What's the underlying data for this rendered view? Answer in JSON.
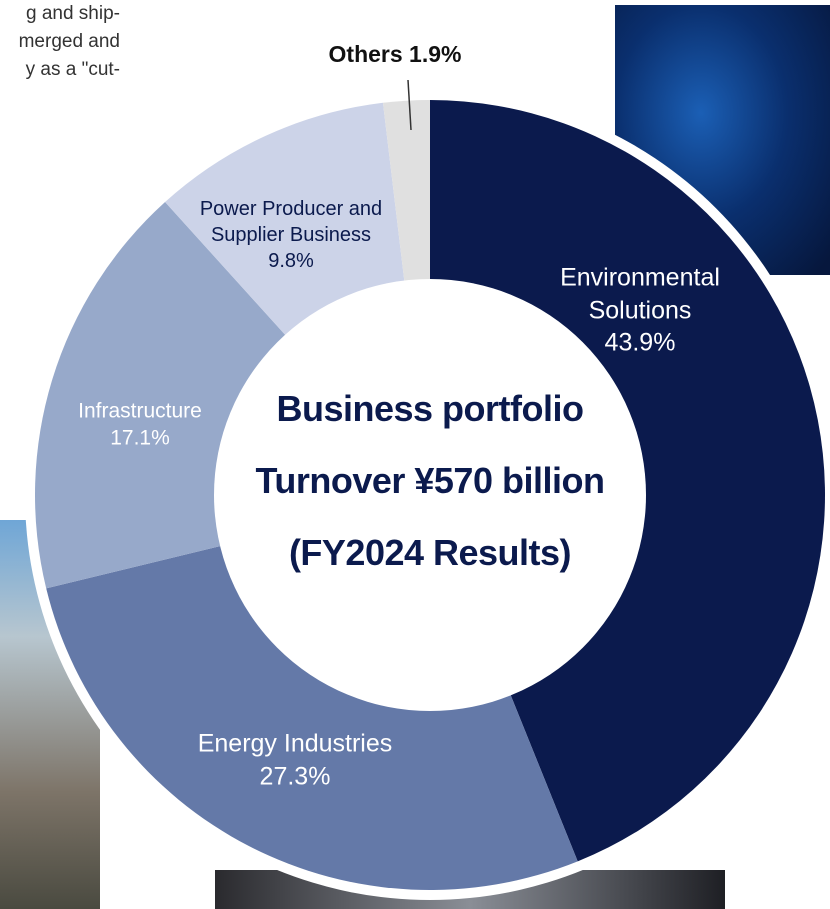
{
  "background_text": [
    "g and ship-",
    "merged and",
    "y as a \"cut-"
  ],
  "chart_data": {
    "type": "pie",
    "center_text": [
      "Business portfolio",
      "Turnover ¥570 billion",
      "(FY2024 Results)"
    ],
    "categories": [
      "Environmental Solutions",
      "Energy Industries",
      "Infrastructure",
      "Power Producer and Supplier Business",
      "Others"
    ],
    "values": [
      43.9,
      27.3,
      17.1,
      9.8,
      1.9
    ],
    "value_labels": [
      "43.9%",
      "27.3%",
      "17.1%",
      "9.8%",
      "1.9%"
    ],
    "colors": [
      "#0b1a4d",
      "#6479a8",
      "#97a9ca",
      "#ccd3e8",
      "#e0e0e0"
    ]
  }
}
